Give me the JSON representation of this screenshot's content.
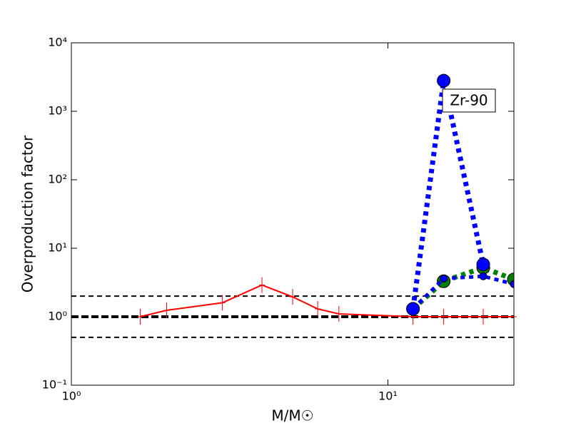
{
  "chart_data": {
    "type": "line",
    "x_label": "M/M☉",
    "y_label": "Overproduction factor",
    "annotation": "Zr-90",
    "log_x": true,
    "log_y": true,
    "xlim": [
      1,
      25
    ],
    "ylim": [
      0.1,
      10000
    ],
    "xticks": [
      {
        "value": 1,
        "label": "10⁰"
      },
      {
        "value": 10,
        "label": "10¹"
      }
    ],
    "yticks": [
      {
        "value": 0.1,
        "label": "10⁻¹"
      },
      {
        "value": 1,
        "label": "10⁰"
      },
      {
        "value": 10,
        "label": "10¹"
      },
      {
        "value": 100,
        "label": "10²"
      },
      {
        "value": 1000,
        "label": "10³"
      },
      {
        "value": 10000,
        "label": "10⁴"
      }
    ],
    "reference_lines": [
      0.5,
      1,
      2
    ],
    "series": [
      {
        "color": "#ff0000",
        "style": "solid",
        "marker": "plus",
        "x": [
          1.65,
          2,
          3,
          4,
          5,
          6,
          7,
          12,
          15,
          20,
          25
        ],
        "values": [
          1.0,
          1.24,
          1.6,
          2.9,
          1.95,
          1.3,
          1.1,
          1.0,
          1.0,
          1.0,
          1.0
        ]
      },
      {
        "color": "#008000",
        "style": "dotted",
        "marker": "large",
        "x": [
          12,
          15,
          20,
          25
        ],
        "values": [
          1.3,
          3.3,
          5.2,
          3.5
        ]
      },
      {
        "color": "#0000ff",
        "style": "dotted",
        "marker": "small",
        "x": [
          12,
          15,
          20,
          25
        ],
        "values": [
          1.3,
          3.6,
          3.9,
          3.0
        ]
      },
      {
        "color": "#0000ff",
        "style": "dotted",
        "marker": "large",
        "x": [
          12,
          15,
          20
        ],
        "values": [
          1.3,
          2800,
          5.8
        ]
      }
    ]
  }
}
